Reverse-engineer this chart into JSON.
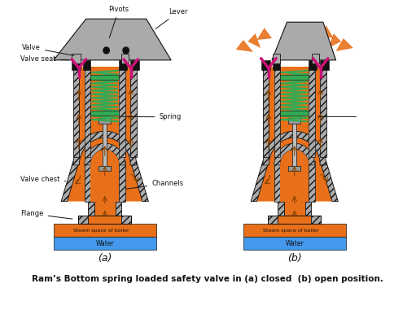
{
  "title": "Ram’s Bottom spring loaded safety valve in (a) closed  (b) open position.",
  "label_a": "(a)",
  "label_b": "(b)",
  "bg_color": "#ffffff",
  "orange": "#E8701A",
  "gray_light": "#AAAAAA",
  "gray_med": "#888888",
  "gray_dark": "#666666",
  "pink": "#CC1177",
  "green": "#33AA55",
  "black": "#111111",
  "blue": "#4499EE",
  "dark_arrow": "#884400"
}
